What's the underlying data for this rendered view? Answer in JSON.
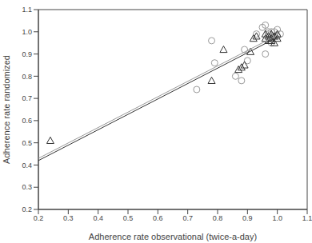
{
  "chart_data": {
    "type": "scatter",
    "x_label": "Adherence rate observational (twice-a-day)",
    "y_label": "Adherence rate randomized",
    "xlim": [
      0.2,
      1.1
    ],
    "ylim": [
      0.2,
      1.1
    ],
    "xticks": [
      0.2,
      0.3,
      0.4,
      0.5,
      0.6,
      0.7,
      0.8,
      0.9,
      {
        "value": 1,
        "label": "1.0"
      },
      1.1
    ],
    "yticks": [
      0.2,
      0.3,
      0.4,
      0.5,
      0.6,
      0.7,
      0.8,
      0.9,
      {
        "value": 1,
        "label": "1.0"
      },
      1.1
    ],
    "series": [
      {
        "type": "scatter",
        "marker": "circle",
        "color": "#999999",
        "x": [
          0.73,
          0.78,
          0.79,
          0.86,
          0.88,
          0.89,
          0.9,
          0.93,
          0.95,
          0.96,
          0.96,
          0.97,
          0.98,
          0.99,
          1.0,
          1.0,
          0.98,
          0.99,
          1.01,
          0.97
        ],
        "values": [
          0.74,
          0.96,
          0.86,
          0.8,
          0.78,
          0.92,
          0.87,
          0.99,
          1.02,
          1.03,
          0.9,
          0.99,
          1.0,
          0.98,
          1.01,
          0.98,
          0.95,
          1.0,
          0.99,
          1.0
        ]
      },
      {
        "type": "scatter",
        "marker": "triangle",
        "color": "#333333",
        "x": [
          0.24,
          0.78,
          0.82,
          0.87,
          0.88,
          0.89,
          0.91,
          0.92,
          0.93,
          0.96,
          0.97,
          0.98,
          0.98,
          0.99,
          1.0,
          0.99,
          0.97,
          1.0,
          0.96,
          0.98
        ],
        "values": [
          0.51,
          0.78,
          0.92,
          0.83,
          0.84,
          0.85,
          0.91,
          0.97,
          0.98,
          0.97,
          0.98,
          0.99,
          0.96,
          0.98,
          0.99,
          0.95,
          0.96,
          0.97,
          0.99,
          0.97
        ]
      },
      {
        "type": "line",
        "color": "#999999",
        "x": [
          0.2,
          1.0
        ],
        "values": [
          0.43,
          0.985
        ]
      },
      {
        "type": "line",
        "color": "#333333",
        "x": [
          0.2,
          1.0
        ],
        "values": [
          0.42,
          0.975
        ]
      }
    ]
  }
}
